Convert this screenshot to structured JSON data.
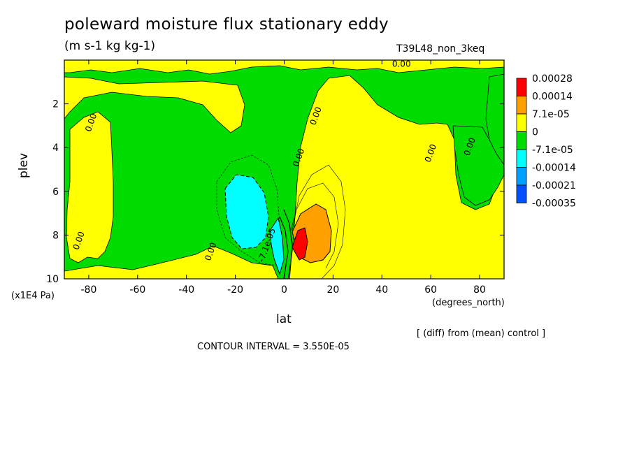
{
  "chart_data": {
    "type": "heatmap",
    "title": "poleward moisture flux stationary eddy",
    "units": "(m s-1 kg kg-1)",
    "run_name": "T39L48_non_3keq",
    "xlabel": "lat",
    "x_units": "(degrees_north)",
    "ylabel": "plev",
    "y_scale_note": "(x1E4 Pa)",
    "diff_note": "[ (diff) from (mean) control ]",
    "contour_interval": "CONTOUR INTERVAL = 3.550E-05",
    "xlim": [
      -90,
      90
    ],
    "ylim": [
      0,
      10
    ],
    "y_inverted": true,
    "x_ticks": [
      -80,
      -60,
      -40,
      -20,
      0,
      20,
      40,
      60,
      80
    ],
    "y_ticks": [
      2,
      4,
      6,
      8,
      10
    ],
    "legend": {
      "position": "right",
      "levels": [
        "0.00028",
        "0.00014",
        "7.1e-05",
        "0",
        "-7.1e-05",
        "-0.00014",
        "-0.00021",
        "-0.00035"
      ],
      "colors": [
        "#ff0000",
        "#ffa000",
        "#ffff00",
        "#00dc00",
        "#00ffff",
        "#00a0ff",
        "#0050ff"
      ]
    },
    "contour_labels": [
      {
        "text": "0.00",
        "lat": 48,
        "plev": 0.3
      },
      {
        "text": "0.00",
        "lat": -78,
        "plev": 2.9
      },
      {
        "text": "0.00",
        "lat": 14,
        "plev": 2.6
      },
      {
        "text": "0.00",
        "lat": 7,
        "plev": 4.5
      },
      {
        "text": "0.00",
        "lat": 61,
        "plev": 4.3
      },
      {
        "text": "0.00",
        "lat": 77,
        "plev": 4.0
      },
      {
        "text": "0.00",
        "lat": -83,
        "plev": 8.3
      },
      {
        "text": "0.00",
        "lat": -29,
        "plev": 8.8
      },
      {
        "text": "-7.1e-05",
        "lat": -6,
        "plev": 8.5
      }
    ],
    "regions": [
      {
        "name": "positive-band-south",
        "lat_range": [
          -86,
          -67
        ],
        "plev_range": [
          2.2,
          9.4
        ],
        "value": "positive"
      },
      {
        "name": "positive-band-subtropics-south",
        "lat_range": [
          -60,
          -5
        ],
        "plev_range": [
          8.2,
          10
        ],
        "value": "positive"
      },
      {
        "name": "negative-core",
        "lat_range": [
          -25,
          -6
        ],
        "plev_range": [
          5.2,
          9.3
        ],
        "value": "-0.00014"
      },
      {
        "name": "positive-core",
        "lat_range": [
          2,
          22
        ],
        "plev_range": [
          4.5,
          10
        ],
        "value": "7.1e-05"
      },
      {
        "name": "max-core",
        "lat": 6,
        "plev": 8.3,
        "value": "0.00028"
      },
      {
        "name": "positive-upper",
        "lat_range": [
          -90,
          90
        ],
        "plev_range": [
          0,
          0.8
        ],
        "value": "positive"
      }
    ]
  }
}
